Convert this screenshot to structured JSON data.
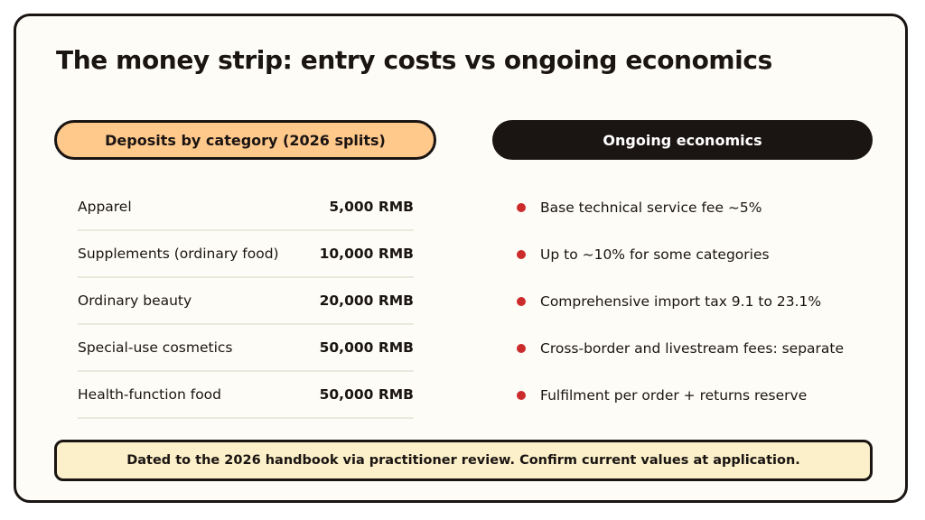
{
  "title": "The money strip: entry costs vs ongoing economics",
  "deposits": {
    "heading": "Deposits by category (2026 splits)",
    "rows": [
      {
        "category": "Apparel",
        "amount": "5,000 RMB"
      },
      {
        "category": "Supplements (ordinary food)",
        "amount": "10,000 RMB"
      },
      {
        "category": "Ordinary beauty",
        "amount": "20,000 RMB"
      },
      {
        "category": "Special-use cosmetics",
        "amount": "50,000 RMB"
      },
      {
        "category": "Health-function food",
        "amount": "50,000 RMB"
      }
    ]
  },
  "economics": {
    "heading": "Ongoing economics",
    "items": [
      "Base technical service fee ~5%",
      "Up to ~10% for some categories",
      "Comprehensive import tax 9.1 to 23.1%",
      "Cross-border and livestream fees: separate",
      "Fulfilment per order + returns reserve"
    ]
  },
  "footer_note": "Dated to the 2026 handbook via practitioner review. Confirm current values at application.",
  "colors": {
    "accent_orange": "#ffc98c",
    "bullet_red": "#cc2b2b",
    "dark": "#1a1412",
    "note_background": "#fbf0c9"
  }
}
